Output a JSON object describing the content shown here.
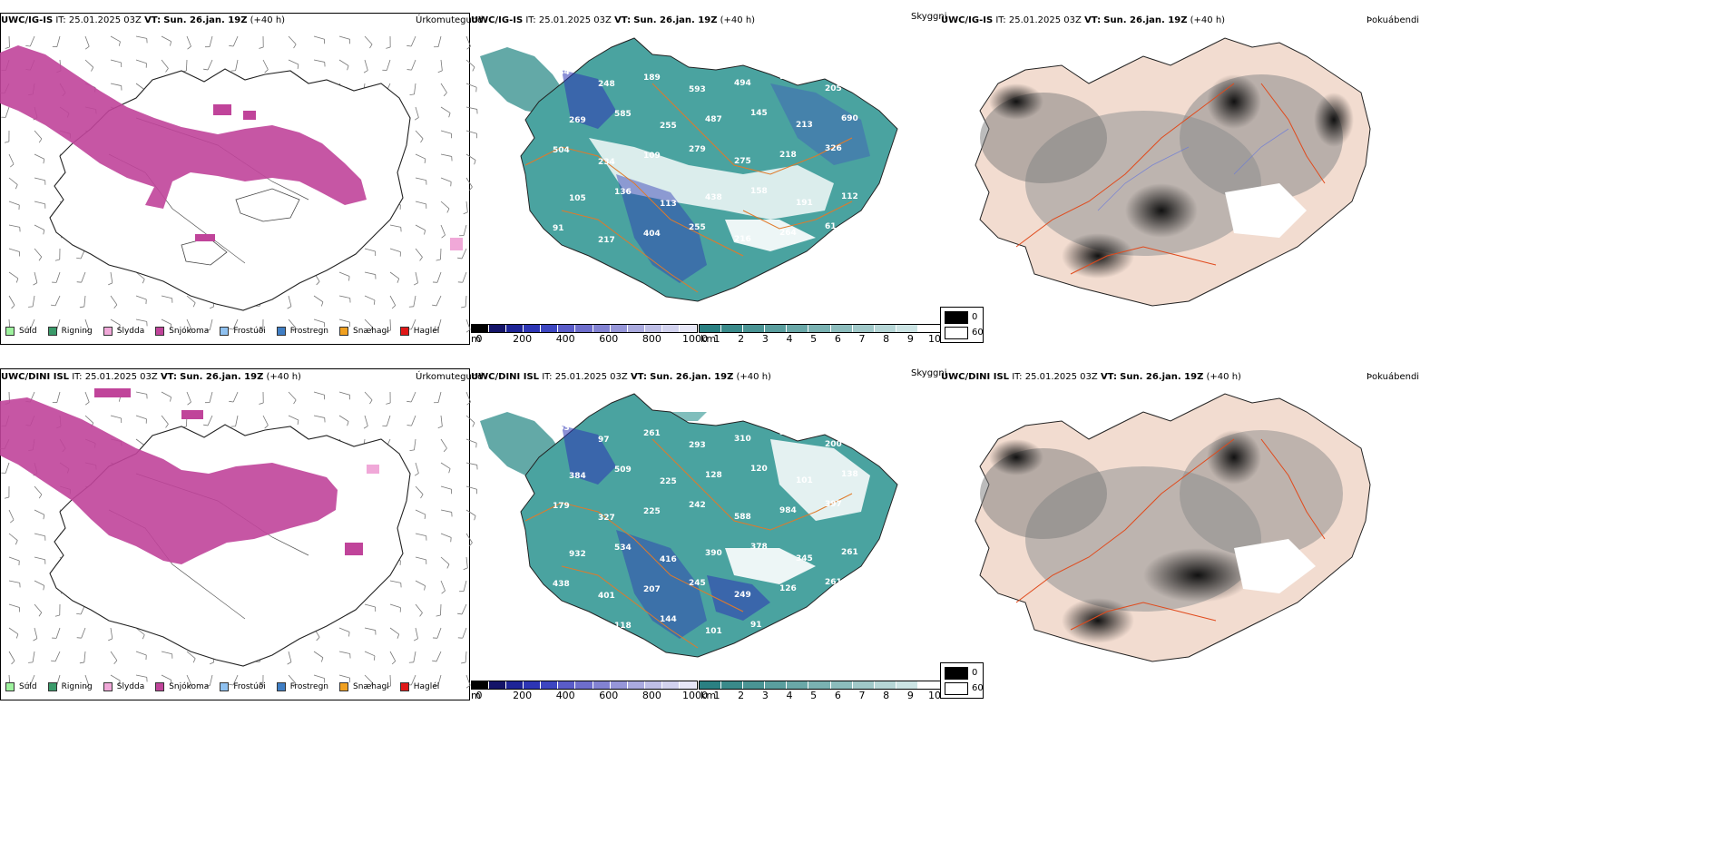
{
  "panels": {
    "precip_top": {
      "model": "UWC/IG-IS",
      "it_label": "IT:",
      "it_value": "25.01.2025 03Z",
      "vt_label": "VT:",
      "vt_value": "Sun. 26.jan. 19Z",
      "lead": "(+40 h)",
      "right_title": "Úrkomutegund"
    },
    "cloud_top": {
      "model": "UWC/IG-IS",
      "it_label": "IT:",
      "it_value": "25.01.2025 03Z",
      "vt_label": "VT:",
      "vt_value": "Sun. 26.jan. 19Z",
      "lead": "(+40 h)",
      "right_title": "Skyggni"
    },
    "fog_top": {
      "model": "UWC/IG-IS",
      "it_label": "IT:",
      "it_value": "25.01.2025 03Z",
      "vt_label": "VT:",
      "vt_value": "Sun. 26.jan. 19Z",
      "lead": "(+40 h)",
      "right_title": "Þokuábendi"
    },
    "precip_bottom": {
      "model": "UWC/DINI ISL",
      "it_label": "IT:",
      "it_value": "25.01.2025 03Z",
      "vt_label": "VT:",
      "vt_value": "Sun. 26.jan. 19Z",
      "lead": "(+40 h)",
      "right_title": "Úrkomutegund"
    },
    "cloud_bottom": {
      "model": "UWC/DINI ISL",
      "it_label": "IT:",
      "it_value": "25.01.2025 03Z",
      "vt_label": "VT:",
      "vt_value": "Sun. 26.jan. 19Z",
      "lead": "(+40 h)",
      "right_title": "Skyggni"
    },
    "fog_bottom": {
      "model": "UWC/DINI ISL",
      "it_label": "IT:",
      "it_value": "25.01.2025 03Z",
      "vt_label": "VT:",
      "vt_value": "Sun. 26.jan. 19Z",
      "lead": "(+40 h)",
      "right_title": "Þokuábendi"
    }
  },
  "precip_legend": [
    {
      "label": "Súld",
      "color": "#9ef29e"
    },
    {
      "label": "Rigning",
      "color": "#3a9a6a"
    },
    {
      "label": "Slydda",
      "color": "#f0a8d8"
    },
    {
      "label": "Snjókoma",
      "color": "#c0449a"
    },
    {
      "label": "Frostúði",
      "color": "#8fc1f0"
    },
    {
      "label": "Frostregn",
      "color": "#3f7ec4"
    },
    {
      "label": "Snæhagl",
      "color": "#f0a020"
    },
    {
      "label": "Haglél",
      "color": "#e01818"
    }
  ],
  "height_bar": {
    "unit": "m",
    "ticks": [
      "0",
      "200",
      "400",
      "600",
      "800",
      "1000"
    ],
    "colors": [
      "#000000",
      "#141468",
      "#1e2496",
      "#2d35b4",
      "#3d46c0",
      "#5a5cc8",
      "#6e6ecc",
      "#8282d2",
      "#9696d8",
      "#aaaade",
      "#bebee6",
      "#d2d2ee",
      "#e6e6f6"
    ]
  },
  "vis_bar": {
    "unit": "km",
    "ticks": [
      "1",
      "2",
      "3",
      "4",
      "5",
      "6",
      "7",
      "8",
      "9",
      "10"
    ],
    "colors": [
      "#2a8082",
      "#3a8a8a",
      "#4a9494",
      "#5a9e9e",
      "#6aa8a8",
      "#7ab2b2",
      "#8cbcbc",
      "#a0c8c8",
      "#b6d6d6",
      "#cce4e4",
      "#ffffff"
    ]
  },
  "fog_legend": {
    "low": "0",
    "high": "60"
  },
  "cloud_top_peaks": [
    "284",
    "248",
    "189",
    "593",
    "494",
    "90",
    "205",
    "269",
    "585",
    "255",
    "487",
    "145",
    "213",
    "690",
    "504",
    "234",
    "109",
    "279",
    "275",
    "218",
    "326",
    "105",
    "136",
    "113",
    "438",
    "158",
    "191",
    "112",
    "91",
    "217",
    "404",
    "255",
    "216",
    "264",
    "61"
  ],
  "cloud_bottom_peaks": [
    "463",
    "97",
    "261",
    "293",
    "310",
    "350",
    "200",
    "384",
    "509",
    "225",
    "128",
    "120",
    "101",
    "138",
    "179",
    "327",
    "225",
    "242",
    "588",
    "984",
    "397",
    "932",
    "534",
    "416",
    "390",
    "378",
    "345",
    "261",
    "438",
    "401",
    "207",
    "245",
    "249",
    "126",
    "261",
    "78",
    "118",
    "144",
    "101",
    "91",
    "97",
    "102",
    "137",
    "91",
    "174",
    "387"
  ]
}
